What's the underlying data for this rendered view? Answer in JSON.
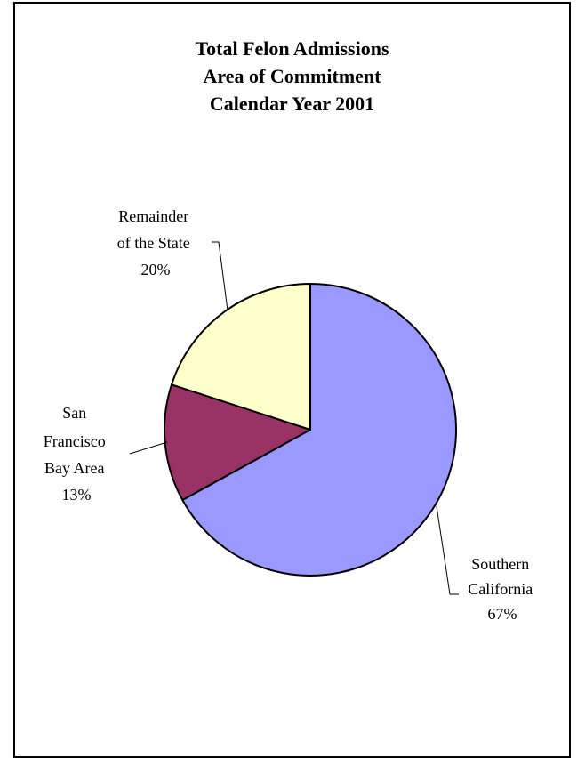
{
  "chart_data": {
    "type": "pie",
    "title": [
      "Total Felon Admissions",
      "Area of Commitment",
      "Calendar Year 2001"
    ],
    "slices": [
      {
        "label": [
          "Southern",
          "California"
        ],
        "percent_label": "67%",
        "value": 67,
        "color": "#9999ff"
      },
      {
        "label": [
          "San",
          "Francisco",
          "Bay Area"
        ],
        "percent_label": "13%",
        "value": 13,
        "color": "#993366"
      },
      {
        "label": [
          "Remainder",
          "of the State"
        ],
        "percent_label": "20%",
        "value": 20,
        "color": "#ffffcc"
      }
    ],
    "start_angle": "12 o'clock",
    "direction": "clockwise",
    "legend": "none"
  }
}
